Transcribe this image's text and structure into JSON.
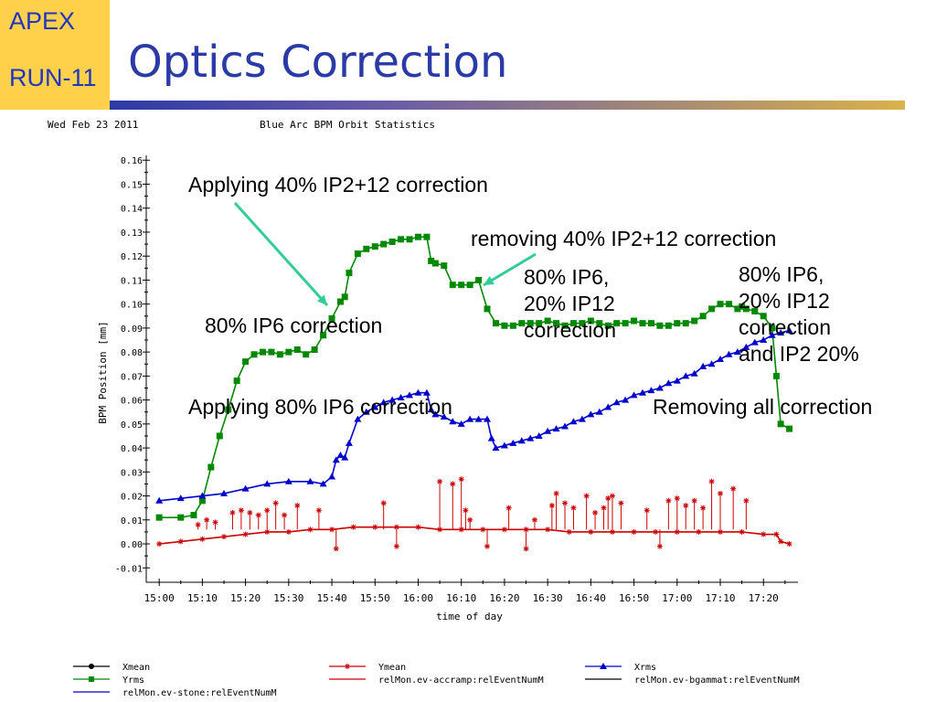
{
  "slide": {
    "badge_line1": "APEX",
    "badge_line2": "RUN-11",
    "title": "Optics Correction",
    "colors": {
      "badge_bg": "#ffd04a",
      "title_text": "#2a3aa6"
    }
  },
  "chart_header": {
    "date": "Wed Feb 23 2011",
    "title": "Blue Arc BPM Orbit Statistics"
  },
  "annotations": [
    {
      "text": "Applying 40% IP2+12 correction"
    },
    {
      "text": "removing 40% IP2+12 correction"
    },
    {
      "text": "80% IP6,\n20% IP12\ncorrection"
    },
    {
      "text": "80% IP6,\n20% IP12\ncorrection\nand IP2 20%"
    },
    {
      "text": "80% IP6 correction"
    },
    {
      "text": "Applying 80% IP6 correction"
    },
    {
      "text": "Removing all correction"
    }
  ],
  "legend": [
    {
      "label": "Xmean",
      "color": "#000000",
      "marker": "circle"
    },
    {
      "label": "Ymean",
      "color": "#cc0000",
      "marker": "star"
    },
    {
      "label": "Xrms",
      "color": "#0000cc",
      "marker": "triangle"
    },
    {
      "label": "Yrms",
      "color": "#008800",
      "marker": "square"
    },
    {
      "label": "relMon.ev-accramp:relEventNumM",
      "color": "#cc0000",
      "marker": "none"
    },
    {
      "label": "relMon.ev-bgammat:relEventNumM",
      "color": "#000000",
      "marker": "none"
    },
    {
      "label": "relMon.ev-stone:relEventNumM",
      "color": "#0000cc",
      "marker": "none"
    }
  ],
  "chart_data": {
    "type": "scatter",
    "xlabel": "time of day",
    "ylabel": "BPM Position [mm]",
    "x_unit": "minutes after 15:00",
    "xlim": [
      -3,
      148
    ],
    "ylim": [
      -0.016,
      0.162
    ],
    "x_ticks": [
      "15:00",
      "15:10",
      "15:20",
      "15:30",
      "15:40",
      "15:50",
      "16:00",
      "16:10",
      "16:20",
      "16:30",
      "16:40",
      "16:50",
      "17:00",
      "17:10",
      "17:20"
    ],
    "y_ticks": [
      "-0.01",
      "0.00",
      "0.01",
      "0.02",
      "0.03",
      "0.04",
      "0.05",
      "0.06",
      "0.07",
      "0.08",
      "0.09",
      "0.10",
      "0.11",
      "0.12",
      "0.13",
      "0.14",
      "0.15",
      "0.16"
    ],
    "grid": false,
    "legend_position": "bottom",
    "series": [
      {
        "name": "Yrms",
        "color": "#008800",
        "marker": "square",
        "x": [
          0,
          5,
          8,
          10,
          12,
          14,
          16,
          18,
          20,
          22,
          24,
          26,
          28,
          30,
          32,
          34,
          36,
          38,
          40,
          42,
          43,
          44,
          46,
          48,
          50,
          52,
          54,
          56,
          58,
          60,
          62,
          63,
          64,
          66,
          68,
          70,
          72,
          74,
          76,
          78,
          80,
          82,
          84,
          86,
          88,
          90,
          92,
          94,
          96,
          98,
          100,
          102,
          104,
          106,
          108,
          110,
          112,
          114,
          116,
          118,
          120,
          122,
          124,
          126,
          128,
          130,
          132,
          134,
          135,
          136,
          138,
          140,
          142,
          143,
          144,
          146
        ],
        "y": [
          0.011,
          0.011,
          0.012,
          0.018,
          0.032,
          0.045,
          0.056,
          0.068,
          0.076,
          0.079,
          0.08,
          0.08,
          0.079,
          0.08,
          0.081,
          0.079,
          0.081,
          0.087,
          0.094,
          0.101,
          0.103,
          0.113,
          0.121,
          0.123,
          0.124,
          0.125,
          0.126,
          0.127,
          0.127,
          0.128,
          0.128,
          0.118,
          0.117,
          0.116,
          0.108,
          0.108,
          0.108,
          0.11,
          0.098,
          0.092,
          0.091,
          0.091,
          0.092,
          0.092,
          0.092,
          0.093,
          0.092,
          0.091,
          0.092,
          0.092,
          0.093,
          0.092,
          0.091,
          0.092,
          0.092,
          0.093,
          0.092,
          0.092,
          0.091,
          0.091,
          0.092,
          0.092,
          0.093,
          0.095,
          0.098,
          0.1,
          0.1,
          0.098,
          0.099,
          0.098,
          0.097,
          0.095,
          0.09,
          0.07,
          0.05,
          0.048
        ]
      },
      {
        "name": "Xrms",
        "color": "#0000cc",
        "marker": "triangle",
        "x": [
          0,
          5,
          10,
          15,
          20,
          25,
          30,
          35,
          38,
          40,
          41,
          42,
          43,
          44,
          46,
          48,
          50,
          52,
          54,
          56,
          58,
          60,
          62,
          63,
          64,
          66,
          68,
          70,
          72,
          74,
          76,
          77,
          78,
          80,
          82,
          84,
          86,
          88,
          90,
          92,
          94,
          96,
          98,
          100,
          102,
          104,
          106,
          108,
          110,
          112,
          114,
          116,
          118,
          120,
          122,
          124,
          126,
          128,
          130,
          132,
          134,
          136,
          138,
          140,
          142,
          144,
          146
        ],
        "y": [
          0.018,
          0.019,
          0.02,
          0.021,
          0.023,
          0.025,
          0.026,
          0.026,
          0.025,
          0.028,
          0.035,
          0.037,
          0.036,
          0.042,
          0.052,
          0.055,
          0.057,
          0.059,
          0.06,
          0.061,
          0.062,
          0.063,
          0.063,
          0.056,
          0.054,
          0.053,
          0.051,
          0.05,
          0.052,
          0.052,
          0.052,
          0.044,
          0.04,
          0.041,
          0.042,
          0.043,
          0.044,
          0.045,
          0.047,
          0.048,
          0.049,
          0.051,
          0.052,
          0.054,
          0.055,
          0.057,
          0.059,
          0.06,
          0.062,
          0.063,
          0.064,
          0.065,
          0.067,
          0.068,
          0.07,
          0.071,
          0.074,
          0.075,
          0.077,
          0.079,
          0.08,
          0.082,
          0.084,
          0.085,
          0.087,
          0.088,
          0.089
        ]
      },
      {
        "name": "Ymean",
        "color": "#cc0000",
        "marker": "star",
        "x": [
          0,
          5,
          10,
          15,
          20,
          25,
          30,
          35,
          40,
          45,
          50,
          55,
          60,
          65,
          70,
          75,
          80,
          85,
          90,
          95,
          100,
          105,
          110,
          115,
          120,
          125,
          130,
          135,
          140,
          143,
          144,
          146
        ],
        "y": [
          0.0,
          0.001,
          0.002,
          0.003,
          0.004,
          0.005,
          0.005,
          0.006,
          0.006,
          0.007,
          0.007,
          0.007,
          0.007,
          0.006,
          0.006,
          0.006,
          0.006,
          0.006,
          0.006,
          0.005,
          0.005,
          0.005,
          0.005,
          0.005,
          0.005,
          0.005,
          0.005,
          0.005,
          0.004,
          0.004,
          0.001,
          0.0
        ]
      },
      {
        "name": "Ymean spikes",
        "color": "#cc0000",
        "marker": "star",
        "x": [
          9,
          11,
          13,
          17,
          19,
          21,
          23,
          25,
          27,
          29,
          32,
          37,
          41,
          52,
          55,
          65,
          68,
          70,
          71,
          72,
          76,
          81,
          85,
          87,
          91,
          92,
          94,
          96,
          99,
          101,
          103,
          104,
          105,
          107,
          113,
          116,
          118,
          120,
          122,
          124,
          126,
          128,
          130,
          133,
          136
        ],
        "y": [
          0.008,
          0.01,
          0.009,
          0.013,
          0.014,
          0.013,
          0.012,
          0.014,
          0.017,
          0.012,
          0.016,
          0.014,
          -0.002,
          0.017,
          -0.001,
          0.026,
          0.025,
          0.027,
          0.014,
          0.01,
          -0.001,
          0.015,
          -0.002,
          0.01,
          0.016,
          0.021,
          0.017,
          0.015,
          0.02,
          0.013,
          0.015,
          0.019,
          0.02,
          0.017,
          0.014,
          -0.001,
          0.018,
          0.019,
          0.016,
          0.018,
          0.015,
          0.026,
          0.021,
          0.023,
          0.018
        ]
      }
    ]
  }
}
